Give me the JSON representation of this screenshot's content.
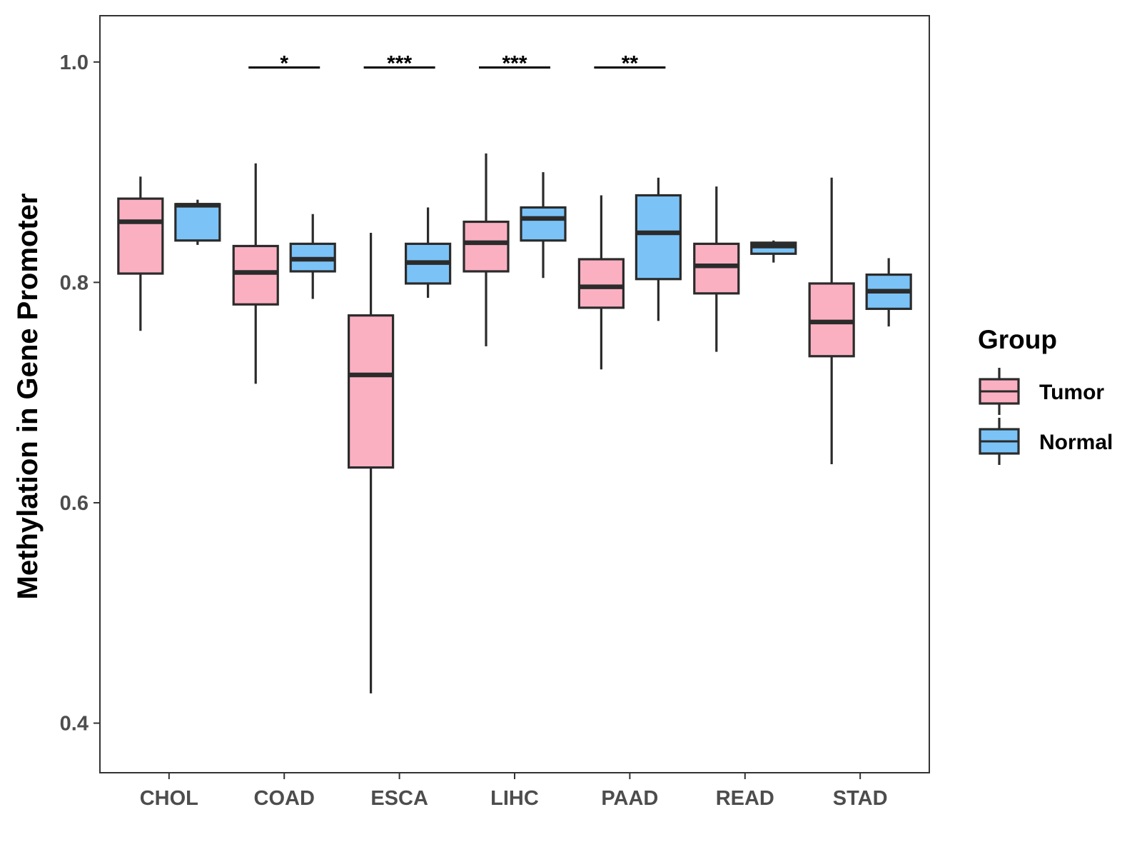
{
  "chart_data": {
    "type": "boxplot",
    "title": "",
    "xlabel": "",
    "ylabel": "Methylation in Gene Promoter",
    "ylim": [
      0.355,
      1.042
    ],
    "yticks": [
      0.4,
      0.6,
      0.8,
      1.0
    ],
    "ytick_labels": [
      "0.4",
      "0.6",
      "0.8",
      "1.0"
    ],
    "grid": false,
    "categories": [
      "CHOL",
      "COAD",
      "ESCA",
      "LIHC",
      "PAAD",
      "READ",
      "STAD"
    ],
    "legend": {
      "title": "Group",
      "position": "right"
    },
    "series": [
      {
        "name": "Tumor",
        "color": "#fbb0c2",
        "boxes": [
          {
            "min": 0.756,
            "q1": 0.808,
            "median": 0.855,
            "q3": 0.876,
            "max": 0.896
          },
          {
            "min": 0.708,
            "q1": 0.78,
            "median": 0.809,
            "q3": 0.833,
            "max": 0.908
          },
          {
            "min": 0.427,
            "q1": 0.632,
            "median": 0.716,
            "q3": 0.77,
            "max": 0.845
          },
          {
            "min": 0.742,
            "q1": 0.81,
            "median": 0.836,
            "q3": 0.855,
            "max": 0.917
          },
          {
            "min": 0.721,
            "q1": 0.777,
            "median": 0.796,
            "q3": 0.821,
            "max": 0.879
          },
          {
            "min": 0.737,
            "q1": 0.79,
            "median": 0.815,
            "q3": 0.835,
            "max": 0.887
          },
          {
            "min": 0.635,
            "q1": 0.733,
            "median": 0.764,
            "q3": 0.799,
            "max": 0.895
          }
        ]
      },
      {
        "name": "Normal",
        "color": "#7bc3f7",
        "boxes": [
          {
            "min": 0.834,
            "q1": 0.838,
            "median": 0.87,
            "q3": 0.871,
            "max": 0.875
          },
          {
            "min": 0.785,
            "q1": 0.81,
            "median": 0.821,
            "q3": 0.835,
            "max": 0.862
          },
          {
            "min": 0.786,
            "q1": 0.799,
            "median": 0.818,
            "q3": 0.835,
            "max": 0.868
          },
          {
            "min": 0.804,
            "q1": 0.838,
            "median": 0.858,
            "q3": 0.868,
            "max": 0.9
          },
          {
            "min": 0.765,
            "q1": 0.803,
            "median": 0.845,
            "q3": 0.879,
            "max": 0.895
          },
          {
            "min": 0.818,
            "q1": 0.826,
            "median": 0.833,
            "q3": 0.836,
            "max": 0.838
          },
          {
            "min": 0.76,
            "q1": 0.776,
            "median": 0.792,
            "q3": 0.807,
            "max": 0.822
          }
        ]
      }
    ],
    "annotations": [
      {
        "category": "COAD",
        "label": "*",
        "y": 0.995
      },
      {
        "category": "ESCA",
        "label": "***",
        "y": 0.995
      },
      {
        "category": "LIHC",
        "label": "***",
        "y": 0.995
      },
      {
        "category": "PAAD",
        "label": "**",
        "y": 0.995
      }
    ]
  }
}
